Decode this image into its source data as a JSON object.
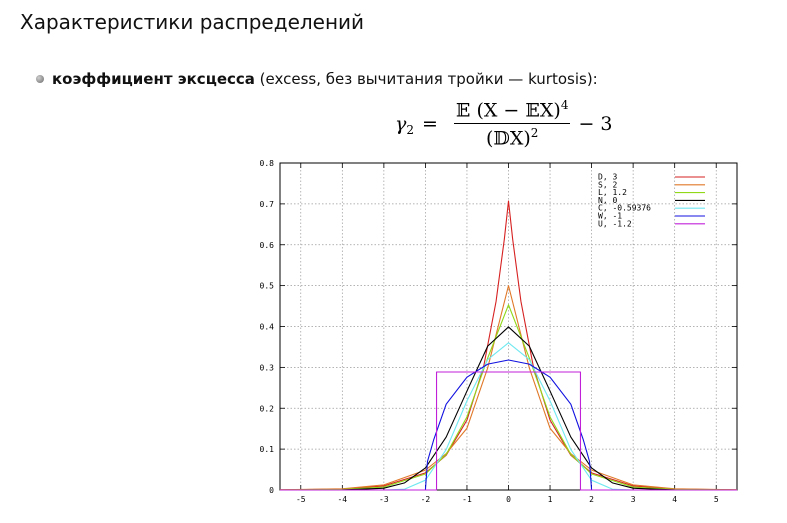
{
  "slide": {
    "title": "Характеристики распределений",
    "bullet_term": "коэффициент эксцесса",
    "bullet_rest": " (excess, без вычитания тройки — kurtosis):"
  },
  "formula": {
    "lhs": "γ",
    "lhs_sub": "2",
    "eq": "=",
    "num_main": "𝔼 (X − 𝔼X)",
    "num_pow": "4",
    "den_main": "(𝔻X)",
    "den_pow": "2",
    "tail": "− 3"
  },
  "chart_data": {
    "type": "line",
    "title": "",
    "xlabel": "",
    "ylabel": "",
    "xlim": [
      -5.5,
      5.5
    ],
    "ylim": [
      0,
      0.8
    ],
    "x_ticks": [
      -5,
      -4,
      -3,
      -2,
      -1,
      0,
      1,
      2,
      3,
      4,
      5
    ],
    "x_tick_labels": [
      "-5",
      "-4",
      "-3",
      "-2",
      "-1",
      "0",
      "1",
      "2",
      "3",
      "4",
      "5"
    ],
    "y_ticks": [
      0,
      0.1,
      0.2,
      0.3,
      0.4,
      0.5,
      0.6,
      0.7,
      0.8
    ],
    "y_tick_labels": [
      "0",
      "0.1",
      "0.2",
      "0.3",
      "0.4",
      "0.5",
      "0.6",
      "0.7",
      "0.8"
    ],
    "grid": true,
    "legend_position": "top-right",
    "series": [
      {
        "name": "D,  3",
        "color": "#d62020",
        "x": [
          -5.5,
          -4,
          -3,
          -2,
          -1.5,
          -1,
          -0.6,
          -0.3,
          -0.1,
          0,
          0.1,
          0.3,
          0.6,
          1,
          1.5,
          2,
          3,
          4,
          5.5
        ],
        "y": [
          0.0003,
          0.0024,
          0.0101,
          0.0418,
          0.085,
          0.171,
          0.301,
          0.461,
          0.614,
          0.707,
          0.614,
          0.461,
          0.301,
          0.171,
          0.085,
          0.0418,
          0.0101,
          0.0024,
          0.0003
        ]
      },
      {
        "name": "S,  2",
        "color": "#e07828",
        "x": [
          -5.5,
          -4,
          -3,
          -2,
          -1.5,
          -1,
          -0.5,
          0,
          0.5,
          1,
          1.5,
          2,
          3,
          4,
          5.5
        ],
        "y": [
          0.0004,
          0.0029,
          0.0125,
          0.0487,
          0.089,
          0.151,
          0.299,
          0.5,
          0.299,
          0.151,
          0.089,
          0.0487,
          0.0125,
          0.0029,
          0.0004
        ]
      },
      {
        "name": "L,  1.2",
        "color": "#90d818",
        "x": [
          -5.5,
          -4,
          -3,
          -2,
          -1.5,
          -1,
          -0.5,
          0,
          0.5,
          1,
          1.5,
          2,
          3,
          4,
          5.5
        ],
        "y": [
          0.0001,
          0.0013,
          0.0072,
          0.0392,
          0.087,
          0.179,
          0.323,
          0.453,
          0.323,
          0.179,
          0.087,
          0.0392,
          0.0072,
          0.0013,
          0.0001
        ]
      },
      {
        "name": "N,  0",
        "color": "#000000",
        "x": [
          -5.5,
          -4,
          -3,
          -2.5,
          -2,
          -1.5,
          -1,
          -0.5,
          0,
          0.5,
          1,
          1.5,
          2,
          2.5,
          3,
          4,
          5.5
        ],
        "y": [
          0,
          0.0001,
          0.0044,
          0.0175,
          0.054,
          0.1295,
          0.242,
          0.352,
          0.399,
          0.352,
          0.242,
          0.1295,
          0.054,
          0.0175,
          0.0044,
          0.0001,
          0
        ]
      },
      {
        "name": "C, -0.59376",
        "color": "#6ee8f0",
        "x": [
          -5.5,
          -4,
          -3,
          -2.5,
          -2,
          -1.5,
          -1,
          -0.5,
          0,
          0.5,
          1,
          1.5,
          2,
          2.5,
          3,
          4,
          5.5
        ],
        "y": [
          0,
          0,
          0,
          0.002,
          0.024,
          0.099,
          0.218,
          0.319,
          0.36,
          0.319,
          0.218,
          0.099,
          0.024,
          0.002,
          0,
          0,
          0
        ]
      },
      {
        "name": "W, -1",
        "color": "#1010e0",
        "x": [
          -5.5,
          -2,
          -1.95,
          -1.8,
          -1.5,
          -1,
          -0.5,
          0,
          0.5,
          1,
          1.5,
          1.8,
          1.95,
          2,
          5.5
        ],
        "y": [
          0,
          0,
          0.07,
          0.123,
          0.21,
          0.276,
          0.308,
          0.318,
          0.308,
          0.276,
          0.21,
          0.123,
          0.07,
          0,
          0
        ]
      },
      {
        "name": "U, -1.2",
        "color": "#c020d8",
        "x": [
          -5.5,
          -1.732,
          -1.732,
          1.732,
          1.732,
          5.5
        ],
        "y": [
          0,
          0,
          0.2887,
          0.2887,
          0,
          0
        ]
      }
    ]
  }
}
